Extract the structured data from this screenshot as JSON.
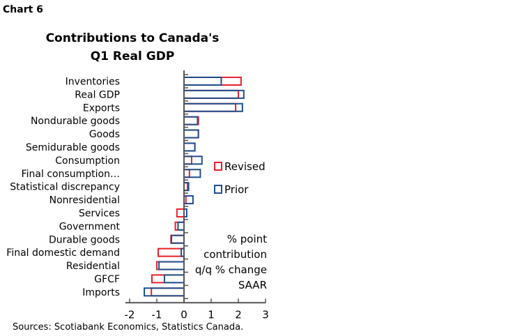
{
  "chart_label": "Chart 6",
  "chart_data": {
    "type": "bar",
    "orientation": "horizontal",
    "title": "Contributions to Canada's Q1 Real GDP",
    "title_lines": [
      "Contributions to Canada's",
      "Q1 Real GDP"
    ],
    "categories": [
      "Inventories",
      "Real GDP",
      "Exports",
      "Nondurable goods",
      "Goods",
      "Semidurable goods",
      "Consumption",
      "Final consumption…",
      "Statistical discrepancy",
      "Nonresidential",
      "Services",
      "Government",
      "Durable goods",
      "Final domestic demand",
      "Residential",
      "GFCF",
      "Imports"
    ],
    "series": [
      {
        "name": "Revised",
        "color": "#e8202a",
        "values": [
          2.1,
          2.0,
          1.9,
          0.53,
          0.53,
          0.4,
          0.28,
          0.2,
          0.13,
          0.07,
          -0.26,
          -0.32,
          -0.48,
          -0.95,
          -1.0,
          -1.18,
          -1.2
        ]
      },
      {
        "name": "Prior",
        "color": "#1f4e8c",
        "values": [
          1.37,
          2.2,
          2.15,
          0.5,
          0.53,
          0.4,
          0.66,
          0.6,
          0.17,
          0.33,
          0.1,
          -0.22,
          -0.46,
          -0.1,
          -0.92,
          -0.72,
          -1.46
        ]
      }
    ],
    "xlim": [
      -2,
      3
    ],
    "xticks": [
      -2,
      -1,
      0,
      1,
      2,
      3
    ],
    "xtick_labels": [
      "-2",
      "-1",
      "0",
      "1",
      "2",
      "3"
    ],
    "annotation_lines": [
      "% point",
      "contribution",
      "q/q % change",
      "SAAR"
    ],
    "legend_placement": "right",
    "grid": false
  },
  "source": "Sources: Scotiabank Economics, Statistics Canada."
}
